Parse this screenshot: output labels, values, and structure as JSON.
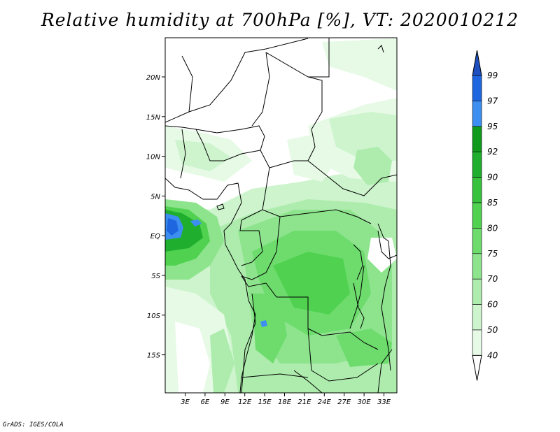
{
  "title": "Relative humidity at 700hPa [%], VT: 2020010212",
  "credit": "GrADS: IGES/COLA",
  "map": {
    "lat_labels": [
      "20N",
      "15N",
      "10N",
      "5N",
      "EQ",
      "5S",
      "10S",
      "15S"
    ],
    "lon_labels": [
      "3E",
      "6E",
      "9E",
      "12E",
      "15E",
      "18E",
      "21E",
      "24E",
      "27E",
      "30E",
      "33E"
    ]
  },
  "colorbar": {
    "levels": [
      "99",
      "97",
      "95",
      "92",
      "90",
      "85",
      "80",
      "75",
      "70",
      "60",
      "50",
      "40"
    ],
    "colors": [
      "#1e66e0",
      "#3c8ff0",
      "#0f9a1c",
      "#1fae2e",
      "#37c23e",
      "#50d250",
      "#6ddc6d",
      "#8de48d",
      "#adecad",
      "#cdf4cd",
      "#e6fae6",
      "#ffffff"
    ],
    "top_arrow_color": "#1d4fbf"
  }
}
